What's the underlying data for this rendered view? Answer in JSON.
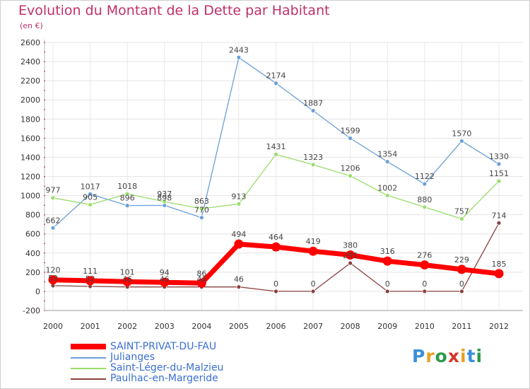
{
  "header": {
    "title": "Evolution du Montant de la Dette par Habitant",
    "subtitle": "(en €)"
  },
  "brand": {
    "name": "Proxiti",
    "letter_colors": [
      "#3a8fd8",
      "#e8a020",
      "#2e9a4a",
      "#d8362a",
      "#e8a020",
      "#3a8fd8",
      "#2e9a4a"
    ]
  },
  "chart_data": {
    "type": "line",
    "title": "Evolution du Montant de la Dette par Habitant",
    "subtitle": "(en €)",
    "xlabel": "",
    "ylabel": "",
    "x": [
      "2000",
      "2001",
      "2002",
      "2003",
      "2004",
      "2005",
      "2006",
      "2007",
      "2008",
      "2009",
      "2010",
      "2011",
      "2012"
    ],
    "ylim": [
      -200,
      2600
    ],
    "yticks": [
      -200,
      0,
      200,
      400,
      600,
      800,
      1000,
      1200,
      1400,
      1600,
      1800,
      2000,
      2200,
      2400,
      2600
    ],
    "grid": true,
    "legend": "bottom-left",
    "series": [
      {
        "name": "SAINT-PRIVAT-DU-FAU",
        "color": "#ff0000",
        "values": [
          120,
          111,
          101,
          94,
          86,
          494,
          464,
          419,
          380,
          316,
          276,
          229,
          185
        ],
        "labels": [
          "120",
          "111",
          "101",
          "94",
          "86",
          "494",
          "464",
          "419",
          "380",
          "316",
          "276",
          "229",
          "185"
        ]
      },
      {
        "name": "Julianges",
        "color": "#6a9fd8",
        "values": [
          662,
          1017,
          896,
          898,
          770,
          2443,
          2174,
          1887,
          1599,
          1354,
          1122,
          1570,
          1330
        ],
        "labels": [
          "662",
          "1017",
          "896",
          "898",
          "770",
          "2443",
          "2174",
          "1887",
          "1599",
          "1354",
          "1122",
          "1570",
          "1330"
        ]
      },
      {
        "name": "Saint-Léger-du-Malzieu",
        "color": "#99dd6a",
        "values": [
          977,
          905,
          1018,
          937,
          863,
          913,
          1431,
          1323,
          1206,
          1002,
          880,
          757,
          1151
        ],
        "labels": [
          "977",
          "905",
          "1018",
          "937",
          "863",
          "913",
          "1431",
          "1323",
          "1206",
          "1002",
          "880",
          "757",
          "1151"
        ]
      },
      {
        "name": "Paulhac-en-Margeride",
        "color": "#8a4040",
        "values": [
          59,
          52,
          46,
          46,
          46,
          46,
          0,
          0,
          295,
          0,
          0,
          0,
          714
        ],
        "labels": [
          "59",
          "52",
          "46",
          "46",
          "46",
          "46",
          "0",
          "0",
          "295",
          "0",
          "0",
          "0",
          "714"
        ]
      }
    ]
  }
}
